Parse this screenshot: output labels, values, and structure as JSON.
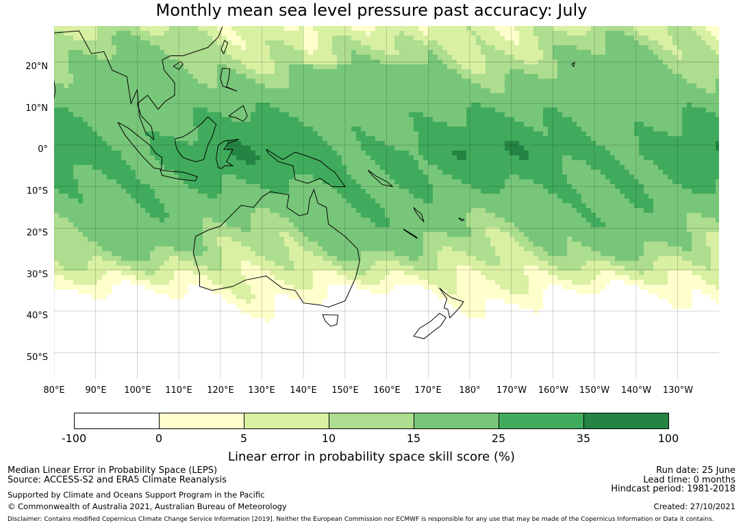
{
  "title": "Monthly mean sea level pressure past accuracy: July",
  "map": {
    "lat_labels": [
      "20°N",
      "10°N",
      "0°",
      "10°S",
      "20°S",
      "30°S",
      "40°S",
      "50°S"
    ],
    "lon_labels": [
      "80°E",
      "90°E",
      "100°E",
      "110°E",
      "120°E",
      "130°E",
      "140°E",
      "150°E",
      "160°E",
      "170°E",
      "180°",
      "170°W",
      "160°W",
      "150°W",
      "140°W",
      "130°W"
    ]
  },
  "colorbar": {
    "tick_labels": [
      "-100",
      "0",
      "5",
      "10",
      "15",
      "25",
      "35",
      "100"
    ],
    "colors": [
      "#ffffff",
      "#ffffcc",
      "#d9f0a3",
      "#addd8e",
      "#78c679",
      "#41ab5d",
      "#238443"
    ],
    "title": "Linear error in probability space skill score (%)"
  },
  "footer": {
    "left": {
      "line1": "Median Linear Error in Probability Space (LEPS)",
      "line2": "Source: ACCESS-S2 and ERA5 Climate Reanalysis",
      "line3": "Supported by Climate and Oceans Support Program in the Pacific",
      "line4": "© Commonwealth of Australia 2021, Australian Bureau of Meteorology"
    },
    "right": {
      "run_date": "Run date: 25 June",
      "lead_time": "Lead time: 0 months",
      "hindcast": "Hindcast period: 1981-2018",
      "created": "Created: 27/10/2021"
    },
    "disclaimer": "Disclaimer: Contains modified Copernicus Climate Change Service Information [2019]. Neither the European Commission nor ECMWF is responsible for any use that may be made of the Copernicus Information or Data it contains."
  }
}
